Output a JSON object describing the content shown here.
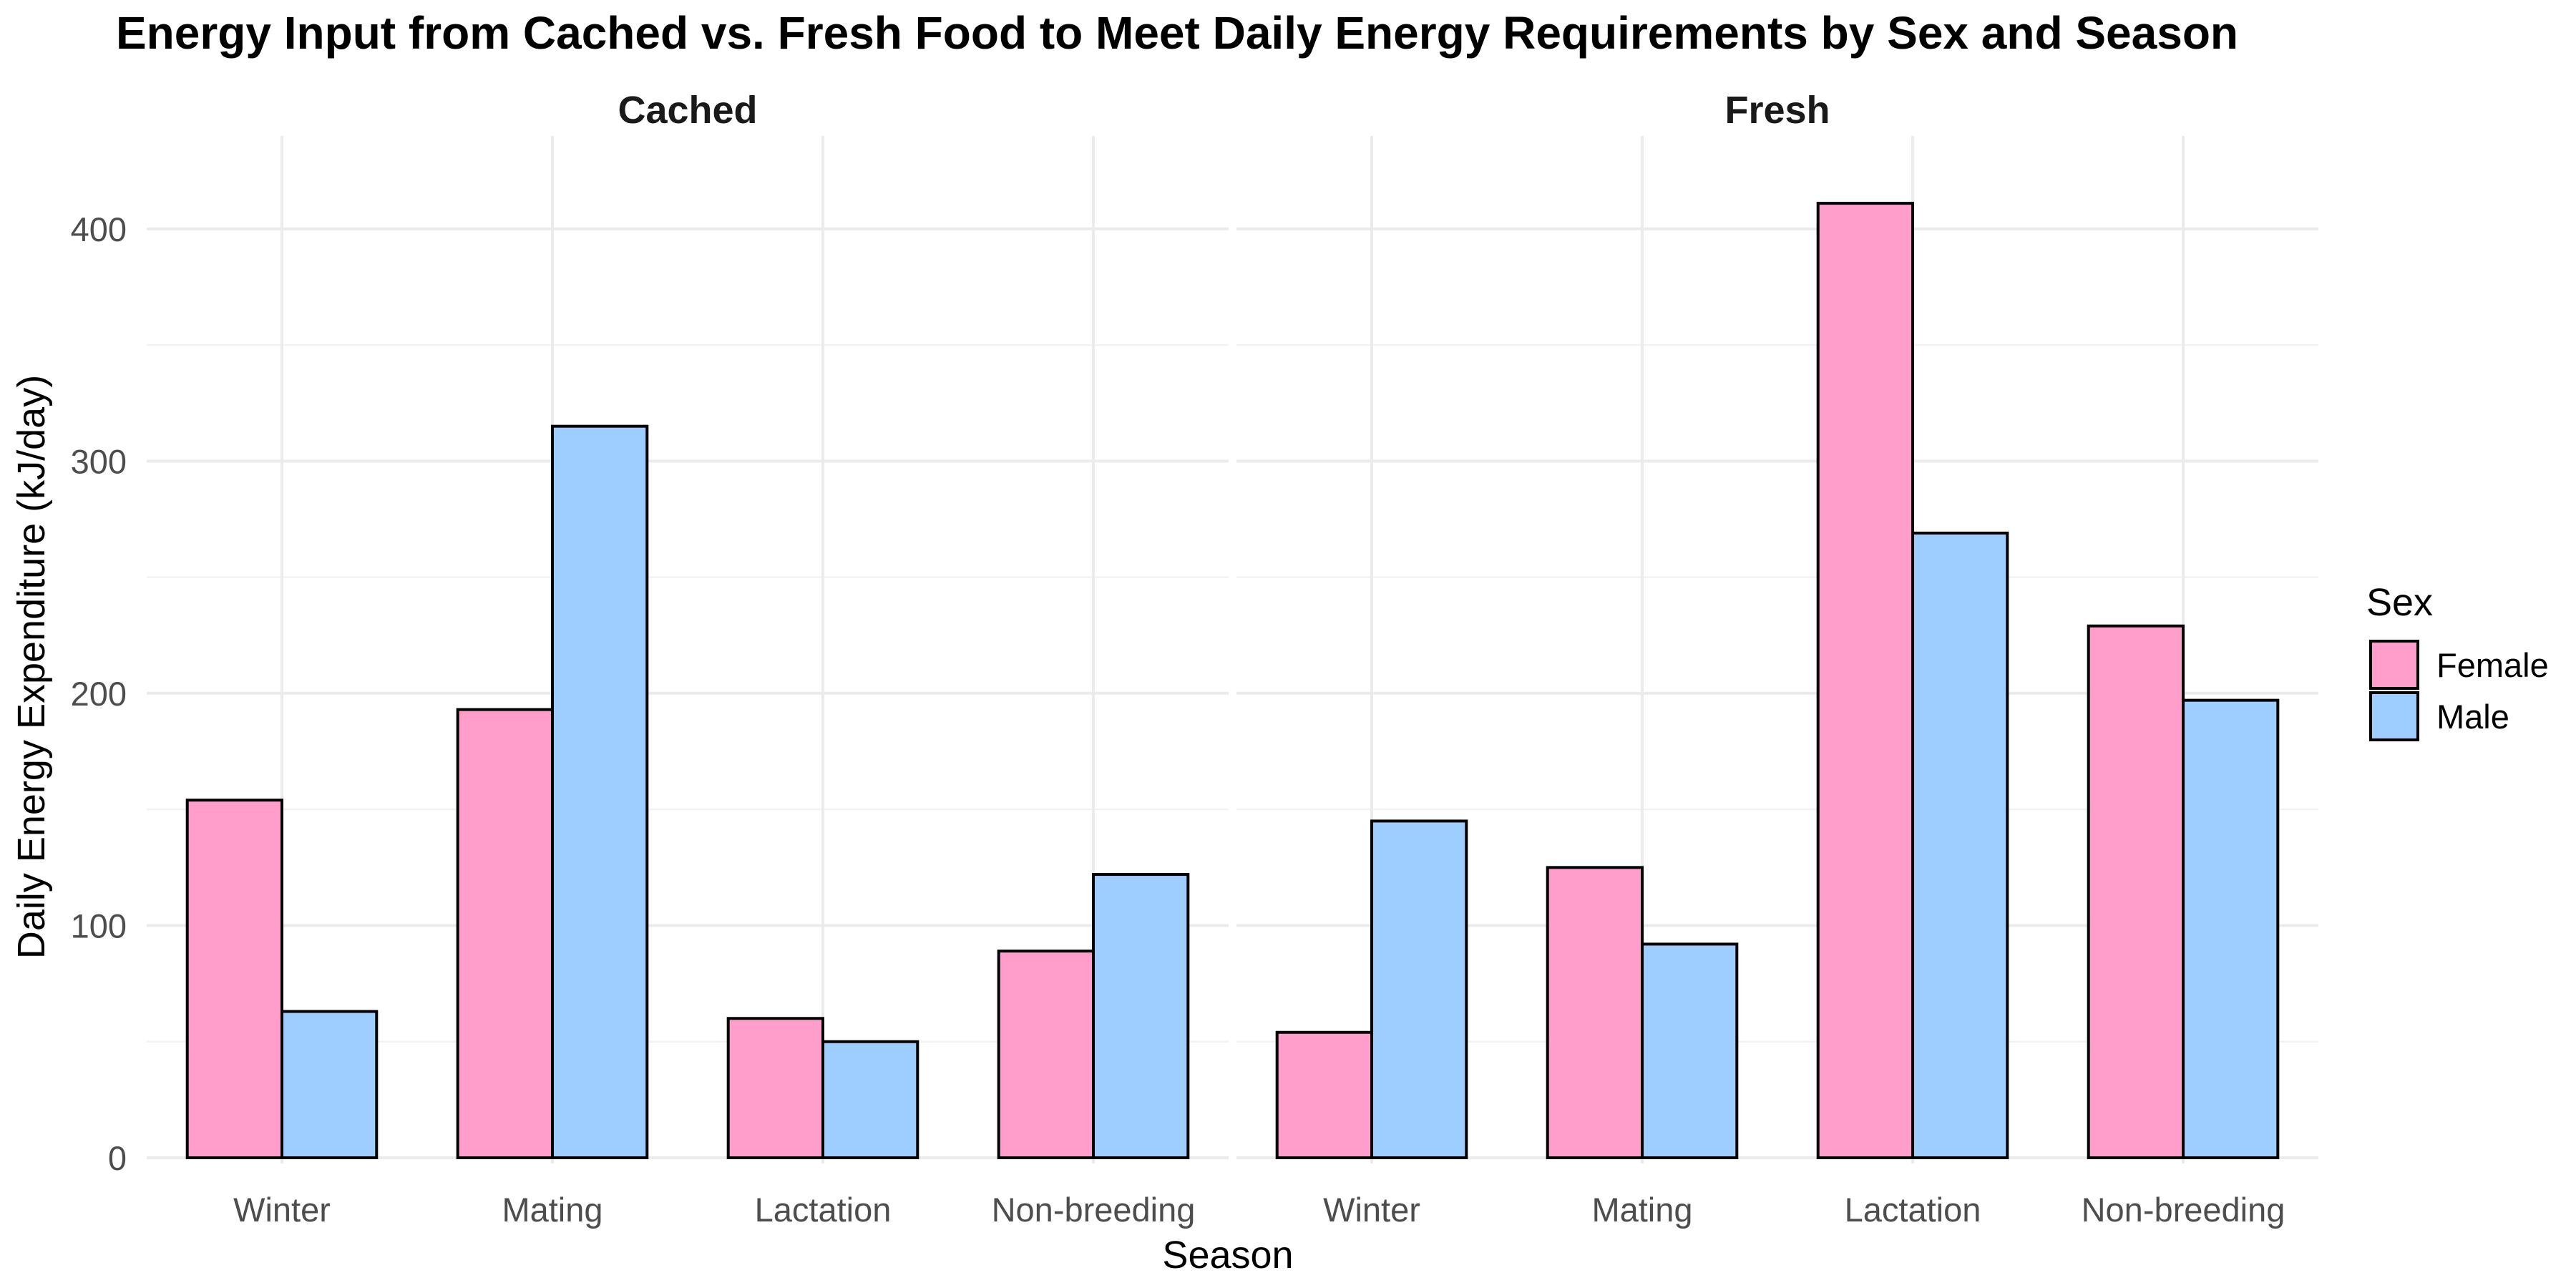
{
  "chart_data": {
    "type": "bar",
    "title": "Energy Input from Cached vs. Fresh Food to Meet Daily Energy Requirements by Sex and Season",
    "xlabel": "Season",
    "ylabel": "Daily Energy Expenditure (kJ/day)",
    "ylim": [
      0,
      440
    ],
    "yticks": [
      0,
      100,
      200,
      300,
      400
    ],
    "categories": [
      "Winter",
      "Mating",
      "Lactation",
      "Non-breeding"
    ],
    "grid": true,
    "legend": {
      "title": "Sex",
      "position": "right",
      "entries": [
        {
          "label": "Female",
          "color": "#FF9ECB"
        },
        {
          "label": "Male",
          "color": "#9ECDFF"
        }
      ]
    },
    "panels": [
      {
        "label": "Cached",
        "series": [
          {
            "name": "Female",
            "color": "#FF9ECB",
            "values": [
              154,
              193,
              60,
              89
            ]
          },
          {
            "name": "Male",
            "color": "#9ECDFF",
            "values": [
              63,
              315,
              50,
              122
            ]
          }
        ]
      },
      {
        "label": "Fresh",
        "series": [
          {
            "name": "Female",
            "color": "#FF9ECB",
            "values": [
              54,
              125,
              411,
              229
            ]
          },
          {
            "name": "Male",
            "color": "#9ECDFF",
            "values": [
              145,
              92,
              269,
              197
            ]
          }
        ]
      }
    ]
  }
}
